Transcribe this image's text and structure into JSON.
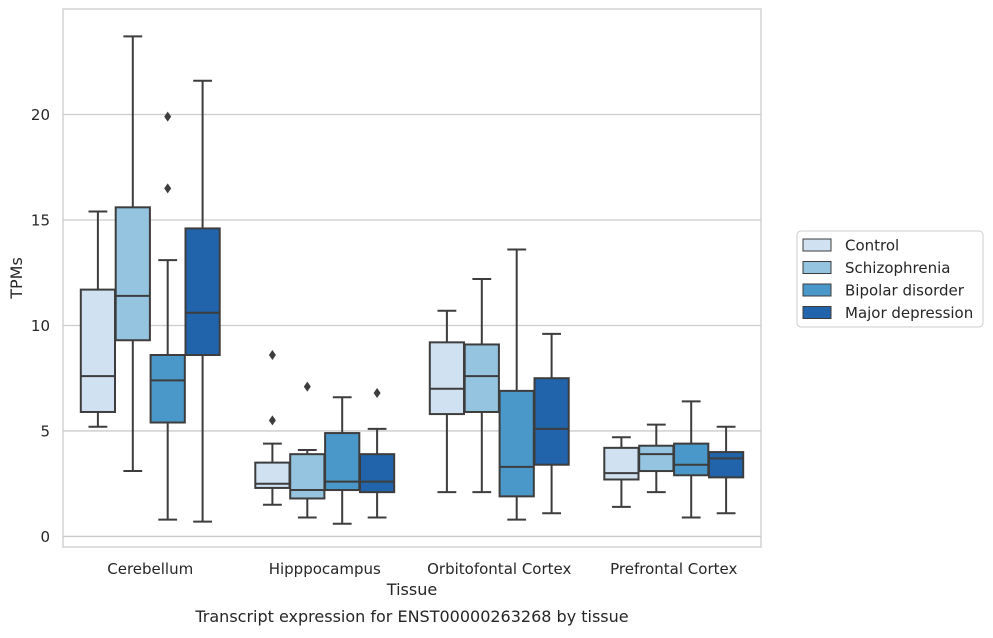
{
  "chart_data": {
    "type": "box",
    "title": "Transcript expression for ENST00000263268 by tissue",
    "xlabel": "Tissue",
    "ylabel": "TPMs",
    "ylim": [
      -0.5,
      25
    ],
    "yticks": [
      0,
      5,
      10,
      15,
      20
    ],
    "grid": "horizontal",
    "legend_position": "right",
    "categories": [
      "Cerebellum",
      "Hipppocampus",
      "Orbitofontal Cortex",
      "Prefrontal Cortex"
    ],
    "series": [
      {
        "name": "Control",
        "color": "#d0e1f2",
        "boxes": [
          {
            "whislo": 5.2,
            "q1": 5.9,
            "med": 7.6,
            "q3": 11.7,
            "whishi": 15.4,
            "fliers": []
          },
          {
            "whislo": 1.5,
            "q1": 2.3,
            "med": 2.5,
            "q3": 3.5,
            "whishi": 4.4,
            "fliers": [
              5.5,
              8.6
            ]
          },
          {
            "whislo": 2.1,
            "q1": 5.8,
            "med": 7.0,
            "q3": 9.2,
            "whishi": 10.7,
            "fliers": []
          },
          {
            "whislo": 1.4,
            "q1": 2.7,
            "med": 3.0,
            "q3": 4.2,
            "whishi": 4.7,
            "fliers": []
          }
        ]
      },
      {
        "name": "Schizophrenia",
        "color": "#94c4df",
        "boxes": [
          {
            "whislo": 3.1,
            "q1": 9.3,
            "med": 11.4,
            "q3": 15.6,
            "whishi": 23.7,
            "fliers": []
          },
          {
            "whislo": 0.9,
            "q1": 1.8,
            "med": 2.2,
            "q3": 3.9,
            "whishi": 4.1,
            "fliers": [
              7.1
            ]
          },
          {
            "whislo": 2.1,
            "q1": 5.9,
            "med": 7.6,
            "q3": 9.1,
            "whishi": 12.2,
            "fliers": []
          },
          {
            "whislo": 2.1,
            "q1": 3.1,
            "med": 3.9,
            "q3": 4.3,
            "whishi": 5.3,
            "fliers": []
          }
        ]
      },
      {
        "name": "Bipolar disorder",
        "color": "#4a98c9",
        "boxes": [
          {
            "whislo": 0.8,
            "q1": 5.4,
            "med": 7.4,
            "q3": 8.6,
            "whishi": 13.1,
            "fliers": [
              16.5,
              19.9
            ]
          },
          {
            "whislo": 0.6,
            "q1": 2.2,
            "med": 2.6,
            "q3": 4.9,
            "whishi": 6.6,
            "fliers": []
          },
          {
            "whislo": 0.8,
            "q1": 1.9,
            "med": 3.3,
            "q3": 6.9,
            "whishi": 13.6,
            "fliers": []
          },
          {
            "whislo": 0.9,
            "q1": 2.9,
            "med": 3.4,
            "q3": 4.4,
            "whishi": 6.4,
            "fliers": []
          }
        ]
      },
      {
        "name": "Major depression",
        "color": "#2164ab",
        "boxes": [
          {
            "whislo": 0.7,
            "q1": 8.6,
            "med": 10.6,
            "q3": 14.6,
            "whishi": 21.6,
            "fliers": []
          },
          {
            "whislo": 0.9,
            "q1": 2.1,
            "med": 2.6,
            "q3": 3.9,
            "whishi": 5.1,
            "fliers": [
              6.8
            ]
          },
          {
            "whislo": 1.1,
            "q1": 3.4,
            "med": 5.1,
            "q3": 7.5,
            "whishi": 9.6,
            "fliers": []
          },
          {
            "whislo": 1.1,
            "q1": 2.8,
            "med": 3.7,
            "q3": 4.0,
            "whishi": 5.2,
            "fliers": []
          }
        ]
      }
    ]
  }
}
